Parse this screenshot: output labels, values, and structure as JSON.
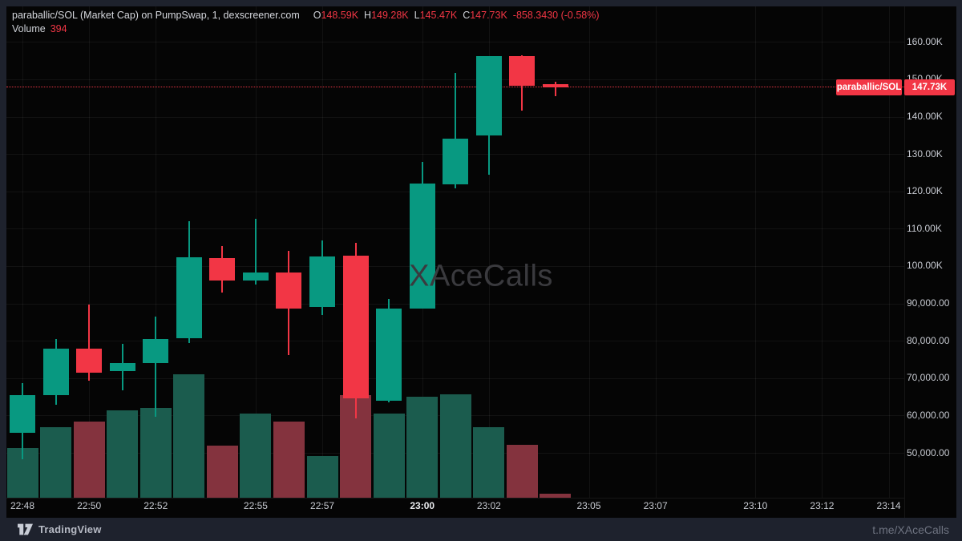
{
  "header": {
    "title": "paraballic/SOL (Market Cap) on PumpSwap, 1, dexscreener.com",
    "ohlc": {
      "open_label": "O",
      "open": "148.59K",
      "high_label": "H",
      "high": "149.28K",
      "low_label": "L",
      "low": "145.47K",
      "close_label": "C",
      "close": "147.73K",
      "change": "-858.3430 (-0.58%)"
    },
    "volume_label": "Volume",
    "volume_value": "394"
  },
  "watermark": "XAceCalls",
  "price_tag": {
    "symbol": "paraballic/SOL",
    "price": "147.73K"
  },
  "footer": {
    "brand": "TradingView",
    "credit": "t.me/XAceCalls"
  },
  "colors": {
    "background_outer": "#1e222d",
    "background_chart": "#050505",
    "up": "#089981",
    "down": "#f23645",
    "volume_up": "#1b5c4e",
    "volume_down": "#84333e",
    "grid": "rgba(255,255,255,0.055)",
    "axis_text": "#c6c9d0",
    "axis_text_bold": "#e8eaed"
  },
  "chart_data": {
    "type": "candlestick",
    "volume_overlay": true,
    "symbol": "paraballic/SOL",
    "interval": "1",
    "units": "market cap in thousands (K)",
    "last_price": 147.73,
    "last_volume": 394,
    "ylim_k": [
      38.0,
      169.5
    ],
    "candles": [
      {
        "t": "22:48",
        "o": 55.4,
        "h": 68.7,
        "l": 48.3,
        "c": 65.4,
        "v": 0.4
      },
      {
        "t": "22:49",
        "o": 65.4,
        "h": 80.4,
        "l": 62.8,
        "c": 77.9,
        "v": 0.57
      },
      {
        "t": "22:50",
        "o": 77.9,
        "h": 89.7,
        "l": 69.3,
        "c": 71.4,
        "v": 0.62
      },
      {
        "t": "22:51",
        "o": 71.9,
        "h": 79.2,
        "l": 66.7,
        "c": 74.0,
        "v": 0.71
      },
      {
        "t": "22:52",
        "o": 74.0,
        "h": 86.4,
        "l": 59.7,
        "c": 80.5,
        "v": 0.73
      },
      {
        "t": "22:53",
        "o": 80.7,
        "h": 112.1,
        "l": 79.4,
        "c": 102.4,
        "v": 1.0
      },
      {
        "t": "22:54",
        "o": 102.1,
        "h": 105.4,
        "l": 92.9,
        "c": 96.1,
        "v": 0.42
      },
      {
        "t": "22:55",
        "o": 96.1,
        "h": 112.6,
        "l": 95.1,
        "c": 98.3,
        "v": 0.68
      },
      {
        "t": "22:56",
        "o": 98.3,
        "h": 104.1,
        "l": 76.2,
        "c": 88.6,
        "v": 0.62
      },
      {
        "t": "22:57",
        "o": 89.1,
        "h": 106.9,
        "l": 86.9,
        "c": 102.6,
        "v": 0.34
      },
      {
        "t": "22:58",
        "o": 102.8,
        "h": 106.2,
        "l": 59.2,
        "c": 64.6,
        "v": 0.83
      },
      {
        "t": "22:59",
        "o": 64.0,
        "h": 91.2,
        "l": 63.6,
        "c": 88.6,
        "v": 0.68
      },
      {
        "t": "23:00",
        "o": 88.6,
        "h": 127.9,
        "l": 88.6,
        "c": 122.1,
        "v": 0.82
      },
      {
        "t": "23:01",
        "o": 121.9,
        "h": 151.7,
        "l": 120.8,
        "c": 134.1,
        "v": 0.84
      },
      {
        "t": "23:02",
        "o": 135.0,
        "h": 156.2,
        "l": 124.5,
        "c": 156.2,
        "v": 0.57
      },
      {
        "t": "23:03",
        "o": 156.2,
        "h": 156.4,
        "l": 141.6,
        "c": 148.3,
        "v": 0.43
      },
      {
        "t": "23:04",
        "o": 148.59,
        "h": 149.28,
        "l": 145.47,
        "c": 147.73,
        "v": 0.03
      }
    ],
    "y_axis": {
      "ticks": [
        {
          "label": "160.00K",
          "value": 160
        },
        {
          "label": "150.00K",
          "value": 150
        },
        {
          "label": "140.00K",
          "value": 140
        },
        {
          "label": "130.00K",
          "value": 130
        },
        {
          "label": "120.00K",
          "value": 120
        },
        {
          "label": "110.00K",
          "value": 110
        },
        {
          "label": "100.00K",
          "value": 100
        },
        {
          "label": "90,000.00",
          "value": 90
        },
        {
          "label": "80,000.00",
          "value": 80
        },
        {
          "label": "70,000.00",
          "value": 70
        },
        {
          "label": "60,000.00",
          "value": 60
        },
        {
          "label": "50,000.00",
          "value": 50
        }
      ]
    },
    "x_axis": {
      "start_time": "22:48",
      "ticks": [
        {
          "label": "22:48",
          "bold": false
        },
        {
          "label": "22:50",
          "bold": false
        },
        {
          "label": "22:52",
          "bold": false
        },
        {
          "label": "22:55",
          "bold": false
        },
        {
          "label": "22:57",
          "bold": false
        },
        {
          "label": "23:00",
          "bold": true
        },
        {
          "label": "23:02",
          "bold": false
        },
        {
          "label": "23:05",
          "bold": false
        },
        {
          "label": "23:07",
          "bold": false
        },
        {
          "label": "23:10",
          "bold": false
        },
        {
          "label": "23:12",
          "bold": false
        },
        {
          "label": "23:14",
          "bold": false
        }
      ]
    }
  }
}
